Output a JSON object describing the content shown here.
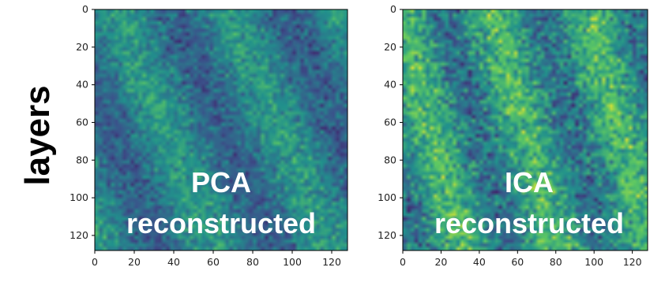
{
  "ylabel": "layers",
  "colormap": [
    "#440154",
    "#3b528b",
    "#21918c",
    "#5ec962",
    "#fde725"
  ],
  "chart_data": [
    {
      "type": "heatmap",
      "title": "",
      "overlay_lines": [
        "PCA",
        "reconstructed"
      ],
      "xlabel": "",
      "ylabel": "layers",
      "xlim": [
        0,
        128
      ],
      "ylim": [
        128,
        0
      ],
      "xticks": [
        "0",
        "20",
        "40",
        "60",
        "80",
        "100",
        "120"
      ],
      "yticks": [
        "0",
        "20",
        "40",
        "60",
        "80",
        "100",
        "120"
      ],
      "grid": false,
      "colormap": "viridis",
      "value_range": [
        0,
        1
      ],
      "mean_value": 0.42,
      "noise_amplitude": 0.2,
      "banding": "diagonal darker bands from upper-middle toward lower-right"
    },
    {
      "type": "heatmap",
      "title": "",
      "overlay_lines": [
        "ICA",
        "reconstructed"
      ],
      "xlabel": "",
      "ylabel": "",
      "xlim": [
        0,
        128
      ],
      "ylim": [
        128,
        0
      ],
      "xticks": [
        "0",
        "20",
        "40",
        "60",
        "80",
        "100",
        "120"
      ],
      "yticks": [
        "0",
        "20",
        "40",
        "60",
        "80",
        "100",
        "120"
      ],
      "grid": false,
      "colormap": "viridis",
      "value_range": [
        0,
        1
      ],
      "mean_value": 0.52,
      "noise_amplitude": 0.28,
      "banding": "alternating light and dark diagonal bands"
    }
  ]
}
